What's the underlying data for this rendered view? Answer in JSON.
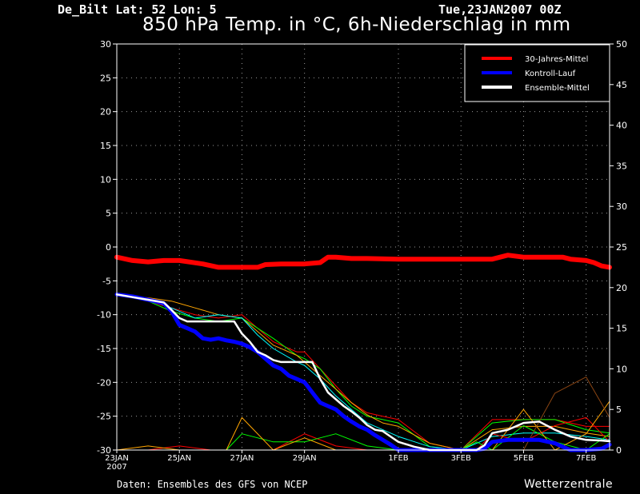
{
  "header": {
    "station": "De_Bilt   Lat: 52 Lon: 5",
    "run": "Tue,23JAN2007 00Z",
    "title": "850 hPa Temp. in °C, 6h-Niederschlag in mm"
  },
  "footer": {
    "credit": "Daten: Ensembles des GFS von NCEP",
    "brand": "Wetterzentrale"
  },
  "colors": {
    "background": "#000000",
    "climate": "#ff0000",
    "control": "#0000ff",
    "ensemble_mean": "#ffffff",
    "members": [
      "#ff0000",
      "#00ff00",
      "#ffa500",
      "#00ffff",
      "#ffff00",
      "#ff00ff",
      "#8b4513",
      "#00c000"
    ]
  },
  "chart_data": {
    "type": "line",
    "title": "850 hPa Temp. in °C, 6h-Niederschlag in mm",
    "x_ticks": [
      "23JAN",
      "25JAN",
      "27JAN",
      "29JAN",
      "1FEB",
      "3FEB",
      "5FEB",
      "7FEB"
    ],
    "x_tick_days": [
      0,
      2,
      4,
      6,
      9,
      11,
      13,
      15
    ],
    "x_year_label": "2007",
    "xlim_days": [
      0,
      15.75
    ],
    "y_left": {
      "label": "",
      "unit": "°C",
      "ylim": [
        -30,
        30
      ],
      "ticks": [
        30,
        25,
        20,
        15,
        10,
        5,
        0,
        -5,
        -10,
        -15,
        -20,
        -25,
        -30
      ]
    },
    "y_right": {
      "label": "",
      "unit": "mm",
      "ylim": [
        0,
        50
      ],
      "ticks": [
        50,
        45,
        40,
        35,
        30,
        25,
        20,
        15,
        10,
        5,
        0
      ]
    },
    "grid": true,
    "legend": {
      "placement": "top-right",
      "entries": [
        {
          "name": "30-Jahres-Mittel",
          "color": "#ff0000"
        },
        {
          "name": "Kontroll-Lauf",
          "color": "#0000ff"
        },
        {
          "name": "Ensemble-Mittel",
          "color": "#ffffff"
        }
      ]
    },
    "series": [
      {
        "name": "30-Jahres-Mittel",
        "axis": "left",
        "color": "#ff0000",
        "width": 6,
        "x": [
          0,
          0.5,
          1,
          1.5,
          2,
          2.75,
          3.25,
          3.75,
          4.25,
          4.5,
          4.75,
          5.25,
          6,
          6.5,
          6.75,
          7,
          7.5,
          8,
          9,
          10,
          11,
          12,
          12.25,
          12.5,
          13,
          13.5,
          13.75,
          14.25,
          14.5,
          15,
          15.25,
          15.5,
          15.75
        ],
        "y": [
          -1.5,
          -2,
          -2.2,
          -2,
          -2,
          -2.5,
          -3,
          -3,
          -3,
          -3,
          -2.6,
          -2.5,
          -2.5,
          -2.3,
          -1.5,
          -1.5,
          -1.7,
          -1.7,
          -1.8,
          -1.8,
          -1.8,
          -1.8,
          -1.5,
          -1.2,
          -1.5,
          -1.5,
          -1.5,
          -1.5,
          -1.8,
          -2,
          -2.3,
          -2.8,
          -3
        ]
      },
      {
        "name": "Kontroll-Lauf",
        "axis": "left",
        "color": "#0000ff",
        "width": 5,
        "x": [
          0,
          0.5,
          1,
          1.5,
          1.75,
          2,
          2.25,
          2.5,
          2.75,
          3,
          3.25,
          3.5,
          3.75,
          4,
          4.25,
          4.5,
          4.75,
          5,
          5.25,
          5.5,
          5.75,
          6,
          6.25,
          6.5,
          6.75,
          7,
          7.25,
          7.5,
          7.75,
          8,
          8.25,
          8.5,
          8.75,
          9,
          9.5,
          10,
          10.5,
          11,
          11.5,
          11.75,
          12,
          12.5,
          13,
          13.5,
          14,
          14.25,
          14.5,
          15,
          15.5,
          15.75
        ],
        "y": [
          -7,
          -7.3,
          -7.8,
          -8.3,
          -9.5,
          -11.5,
          -12,
          -12.5,
          -13.5,
          -13.7,
          -13.5,
          -13.8,
          -14,
          -14.3,
          -14.8,
          -15.5,
          -16.5,
          -17.5,
          -18,
          -19,
          -19.5,
          -20,
          -21.5,
          -23,
          -23.5,
          -24,
          -25,
          -25.8,
          -26.5,
          -27,
          -27.8,
          -28.5,
          -29.2,
          -30,
          -30,
          -30,
          -30,
          -30,
          -30,
          -29.8,
          -28.8,
          -28.5,
          -28.5,
          -28.5,
          -29,
          -29.5,
          -30,
          -30,
          -29.8,
          -29.2
        ]
      },
      {
        "name": "Ensemble-Mittel",
        "axis": "left",
        "color": "#ffffff",
        "width": 2.5,
        "x": [
          0,
          0.5,
          1,
          1.5,
          1.75,
          2,
          2.25,
          2.5,
          2.75,
          3,
          3.25,
          3.5,
          3.75,
          4,
          4.25,
          4.5,
          4.75,
          5,
          5.25,
          5.5,
          5.75,
          6,
          6.25,
          6.5,
          6.75,
          7,
          7.25,
          7.5,
          7.75,
          8,
          8.25,
          8.5,
          8.75,
          9,
          9.5,
          10,
          10.5,
          11,
          11.5,
          11.75,
          12,
          12.5,
          13,
          13.5,
          14,
          14.25,
          14.5,
          15,
          15.5,
          15.75
        ],
        "y": [
          -7,
          -7.4,
          -7.8,
          -8.2,
          -9.3,
          -10.5,
          -11,
          -11,
          -11,
          -11,
          -11,
          -11,
          -11,
          -12.8,
          -14,
          -15.5,
          -16,
          -16.7,
          -17,
          -17,
          -17,
          -17,
          -17,
          -19.5,
          -21.5,
          -22.5,
          -23.5,
          -24.3,
          -25.2,
          -26.3,
          -27,
          -27.2,
          -28,
          -28.8,
          -29.5,
          -30,
          -30,
          -30,
          -30,
          -29.3,
          -27.5,
          -27,
          -26,
          -25.8,
          -27,
          -27.5,
          -28,
          -28.5,
          -28.6,
          -28.7
        ]
      }
    ],
    "members_temperature": [
      {
        "color": "#ff0000",
        "x": [
          0,
          1,
          1.75,
          2.5,
          3.25,
          4,
          4.5,
          5,
          5.75,
          6,
          6.5,
          7,
          7.5,
          8,
          8.5,
          9,
          10,
          11,
          12,
          13,
          14,
          15,
          15.75
        ],
        "y": [
          -7,
          -8,
          -9,
          -10,
          -10.5,
          -10,
          -12,
          -14,
          -15.5,
          -15.5,
          -18,
          -20.5,
          -23,
          -24.5,
          -25,
          -25.5,
          -29,
          -30,
          -25.5,
          -25.5,
          -25.5,
          -26.5,
          -26.5
        ]
      },
      {
        "color": "#00ff00",
        "x": [
          0,
          1,
          1.75,
          2.5,
          3.25,
          4,
          4.5,
          5,
          5.75,
          6,
          6.5,
          7,
          7.5,
          8,
          8.5,
          9,
          10,
          11,
          12,
          13,
          14,
          15,
          15.75
        ],
        "y": [
          -7,
          -8,
          -9.5,
          -10.5,
          -11,
          -10.5,
          -12,
          -13.5,
          -16,
          -16.5,
          -18,
          -21,
          -23.5,
          -25,
          -25.5,
          -26,
          -29.5,
          -30,
          -26,
          -25.5,
          -25.5,
          -27,
          -27.5
        ]
      },
      {
        "color": "#ffa500",
        "x": [
          0,
          1,
          1.75,
          2.5,
          3.25,
          4,
          4.5,
          5,
          5.75,
          6,
          6.5,
          7,
          7.5,
          8,
          8.5,
          9,
          10,
          11,
          12,
          13,
          14,
          15,
          15.75
        ],
        "y": [
          -7.2,
          -7.5,
          -8,
          -9,
          -10,
          -10.5,
          -12.5,
          -14.5,
          -16,
          -17,
          -19,
          -21,
          -23,
          -24.8,
          -26,
          -26.5,
          -29,
          -30,
          -27,
          -26.5,
          -26.5,
          -27.5,
          -28
        ]
      },
      {
        "color": "#00ffff",
        "x": [
          0,
          1,
          1.75,
          2.5,
          3.25,
          4,
          4.5,
          5,
          5.75,
          6,
          6.5,
          7,
          7.5,
          8,
          8.5,
          9,
          10,
          11,
          12,
          13,
          14,
          15,
          15.75
        ],
        "y": [
          -7,
          -7.8,
          -9,
          -10.5,
          -10,
          -10.5,
          -13,
          -15,
          -17,
          -17.5,
          -19.5,
          -22,
          -24,
          -26,
          -27,
          -28,
          -29.5,
          -30,
          -28,
          -27.5,
          -27.5,
          -28,
          -28.5
        ]
      }
    ],
    "members_precip_mm": [
      {
        "color": "#ff0000",
        "x": [
          0,
          1,
          2,
          3,
          3.25,
          3.5,
          4,
          5,
          6,
          7,
          8,
          9,
          10,
          11,
          11.5,
          12,
          13,
          14,
          15,
          15.75
        ],
        "y": [
          0,
          0,
          0.5,
          0,
          0,
          0,
          0,
          0,
          2,
          0.5,
          0,
          0,
          0,
          0,
          0,
          2,
          1,
          3,
          4,
          1
        ]
      },
      {
        "color": "#00ff00",
        "x": [
          0,
          1,
          2,
          3,
          3.25,
          3.5,
          4,
          5,
          6,
          7,
          8,
          9,
          10,
          11,
          11.5,
          12,
          13,
          14,
          15,
          15.75
        ],
        "y": [
          0,
          0,
          0,
          0,
          0,
          0,
          2,
          1,
          1,
          2,
          0.5,
          0,
          0,
          0,
          1,
          0,
          3,
          1,
          0,
          2
        ]
      },
      {
        "color": "#ffa500",
        "x": [
          0,
          1,
          2,
          3,
          3.25,
          3.5,
          4,
          5,
          6,
          7,
          8,
          9,
          10,
          11,
          11.5,
          12,
          13,
          14,
          15,
          15.75
        ],
        "y": [
          0,
          0.5,
          0,
          0,
          0,
          0,
          4,
          0,
          1.5,
          0,
          0,
          0,
          0,
          0,
          0,
          0,
          5,
          0,
          2,
          6
        ]
      },
      {
        "color": "#8b4513",
        "x": [
          0,
          1,
          2,
          3,
          3.25,
          3.5,
          4,
          5,
          6,
          7,
          8,
          9,
          10,
          11,
          11.5,
          12,
          13,
          14,
          15,
          15.75
        ],
        "y": [
          0,
          0,
          0,
          0,
          0,
          0,
          0,
          0,
          0,
          0,
          0,
          0,
          0,
          0,
          0,
          0,
          0,
          7,
          9,
          4
        ]
      }
    ]
  }
}
